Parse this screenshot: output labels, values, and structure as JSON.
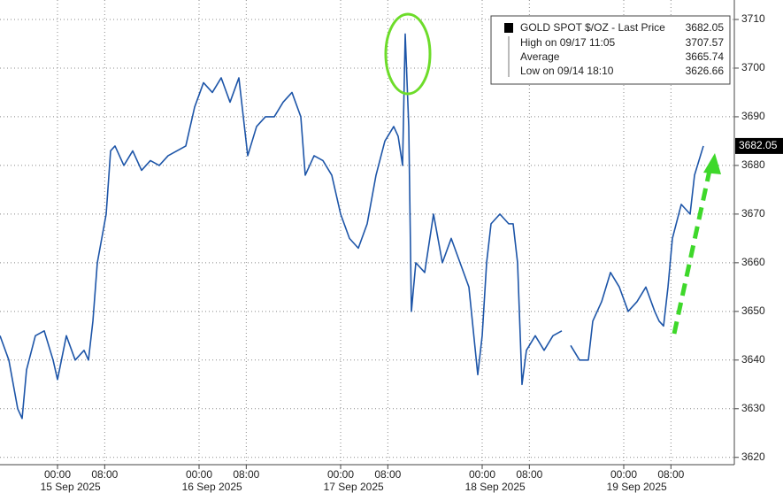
{
  "chart_data": {
    "type": "line",
    "x": [
      -9.75,
      -8.25,
      -6.75,
      -6,
      -5.25,
      -3.75,
      -2.25,
      -0.75,
      0,
      1.5,
      3,
      4.5,
      5.25,
      6,
      6.75,
      7.5,
      8.25,
      9,
      9.75,
      11.25,
      12.75,
      14.25,
      15.75,
      17.25,
      18.75,
      20.25,
      21.75,
      23.25,
      24.75,
      26.25,
      27.75,
      29.25,
      30.75,
      31.5,
      32.25,
      33.75,
      35.25,
      36.75,
      38.25,
      39.75,
      41.25,
      42,
      43.5,
      45,
      46.5,
      48,
      49.5,
      51,
      52.5,
      54,
      55.5,
      57,
      57.75,
      58.5,
      58.95,
      59.55,
      60,
      60.75,
      62.25,
      63.75,
      65.25,
      66.75,
      68.25,
      69.75,
      71.25,
      72,
      72.75,
      73.5,
      75,
      76.5,
      77.25,
      78,
      78.75,
      79.5,
      81,
      82.5,
      84,
      85.5,
      86.25,
      87,
      88.5,
      90,
      90.75,
      92.25,
      93.75,
      95.25,
      96.75,
      98.25,
      99.75,
      101.25,
      102,
      102.75,
      103.5,
      104.25,
      105.75,
      107.25,
      108,
      109.5
    ],
    "series": [
      {
        "name": "GOLD SPOT $/OZ - Last Price",
        "color": "#1d55a8",
        "values": [
          3645,
          3640,
          3630,
          3628,
          3638,
          3645,
          3646,
          3640,
          3636,
          3645,
          3640,
          3642,
          3640,
          3648,
          3660,
          3665,
          3670,
          3683,
          3684,
          3680,
          3683,
          3679,
          3681,
          3680,
          3682,
          3683,
          3684,
          3692,
          3697,
          3695,
          3698,
          3693,
          3698,
          3690,
          3682,
          3688,
          3690,
          3690,
          3693,
          3695,
          3690,
          3678,
          3682,
          3681,
          3678,
          3670,
          3665,
          3663,
          3668,
          3678,
          3685,
          3688,
          3686,
          3680,
          3707,
          3688,
          3650,
          3660,
          3658,
          3670,
          3660,
          3665,
          3660,
          3655,
          3637,
          3645,
          3660,
          3668,
          3670,
          3668,
          3668,
          3660,
          3635,
          3642,
          3645,
          3642,
          3645,
          3646,
          null,
          3643,
          3640,
          3640,
          3648,
          3652,
          3658,
          3655,
          3650,
          3652,
          3655,
          3650,
          3648,
          3647,
          3655,
          3665,
          3672,
          3670,
          3678,
          3684
        ]
      }
    ],
    "xlim": [
      -9.75,
      114.75
    ],
    "ylim": [
      3618.5,
      3714
    ],
    "xticks": [
      {
        "value": 0,
        "label": "00:00"
      },
      {
        "value": 8,
        "label": "08:00"
      },
      {
        "value": 24,
        "label": "00:00"
      },
      {
        "value": 32,
        "label": "08:00"
      },
      {
        "value": 48,
        "label": "00:00"
      },
      {
        "value": 56,
        "label": "08:00"
      },
      {
        "value": 72,
        "label": "00:00"
      },
      {
        "value": 80,
        "label": "08:00"
      },
      {
        "value": 96,
        "label": "00:00"
      },
      {
        "value": 104,
        "label": "08:00"
      }
    ],
    "date_labels": [
      "15 Sep 2025",
      "16 Sep 2025",
      "17 Sep 2025",
      "18 Sep 2025",
      "19 Sep 2025"
    ],
    "yticks": [
      3620,
      3630,
      3640,
      3650,
      3660,
      3670,
      3680,
      3690,
      3700,
      3710
    ],
    "grid": true,
    "legend": [
      {
        "label": "GOLD SPOT $/OZ - Last Price",
        "value": "3682.05"
      },
      {
        "label": "High on 09/17 11:05",
        "value": "3707.57"
      },
      {
        "label": "Average",
        "value": "3665.74"
      },
      {
        "label": "Low on 09/14 18:10",
        "value": "3626.66"
      }
    ]
  }
}
